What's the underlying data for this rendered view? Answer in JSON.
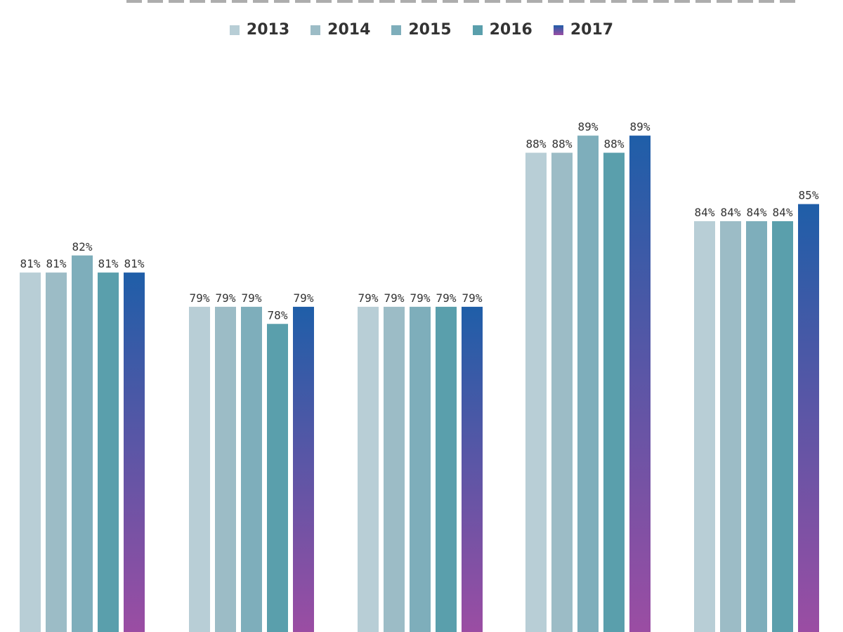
{
  "chart_data": {
    "type": "bar",
    "title": "",
    "xlabel": "",
    "ylabel": "",
    "categories": [
      "",
      "",
      "",
      "",
      ""
    ],
    "ylim": [
      60,
      92
    ],
    "grid": false,
    "legend_position": "top-center",
    "series": [
      {
        "name": "2013",
        "color": "#b8ced6",
        "values": [
          81,
          79,
          79,
          88,
          84
        ],
        "labels": [
          "81%",
          "79%",
          "79%",
          "88%",
          "84%"
        ]
      },
      {
        "name": "2014",
        "color": "#9cbcc6",
        "values": [
          81,
          79,
          79,
          88,
          84
        ],
        "labels": [
          "81%",
          "79%",
          "79%",
          "88%",
          "84%"
        ]
      },
      {
        "name": "2015",
        "color": "#7eaebb",
        "values": [
          82,
          79,
          79,
          89,
          84
        ],
        "labels": [
          "82%",
          "79%",
          "79%",
          "89%",
          "84%"
        ]
      },
      {
        "name": "2016",
        "color": "#5a9fac",
        "values": [
          81,
          78,
          79,
          88,
          84
        ],
        "labels": [
          "81%",
          "78%",
          "79%",
          "88%",
          "84%"
        ]
      },
      {
        "name": "2017",
        "color": "#1f5ea8",
        "color_bottom": "#9b4da3",
        "values": [
          81,
          79,
          79,
          89,
          85
        ],
        "labels": [
          "81%",
          "79%",
          "79%",
          "89%",
          "85%"
        ]
      }
    ]
  }
}
